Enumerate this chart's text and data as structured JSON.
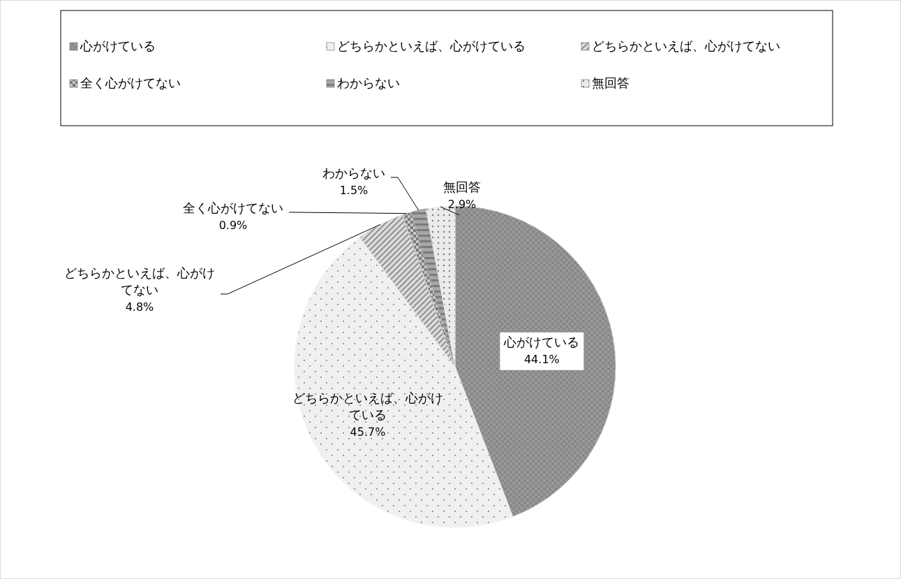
{
  "chart_data": {
    "type": "pie",
    "categories": [
      "心がけている",
      "どちらかといえば、心がけている",
      "どちらかといえば、心がけてない",
      "全く心がけてない",
      "わからない",
      "無回答"
    ],
    "values": [
      44.1,
      45.7,
      4.8,
      0.9,
      1.5,
      2.9
    ],
    "value_labels": [
      "44.1%",
      "45.7%",
      "4.8%",
      "0.9%",
      "1.5%",
      "2.9%"
    ],
    "colors": [
      "#bdbdbd",
      "#f0f0f0",
      "#d9d9d9",
      "#c8c8c8",
      "#a6a6a6",
      "#ebebeb"
    ],
    "legend": "top"
  }
}
